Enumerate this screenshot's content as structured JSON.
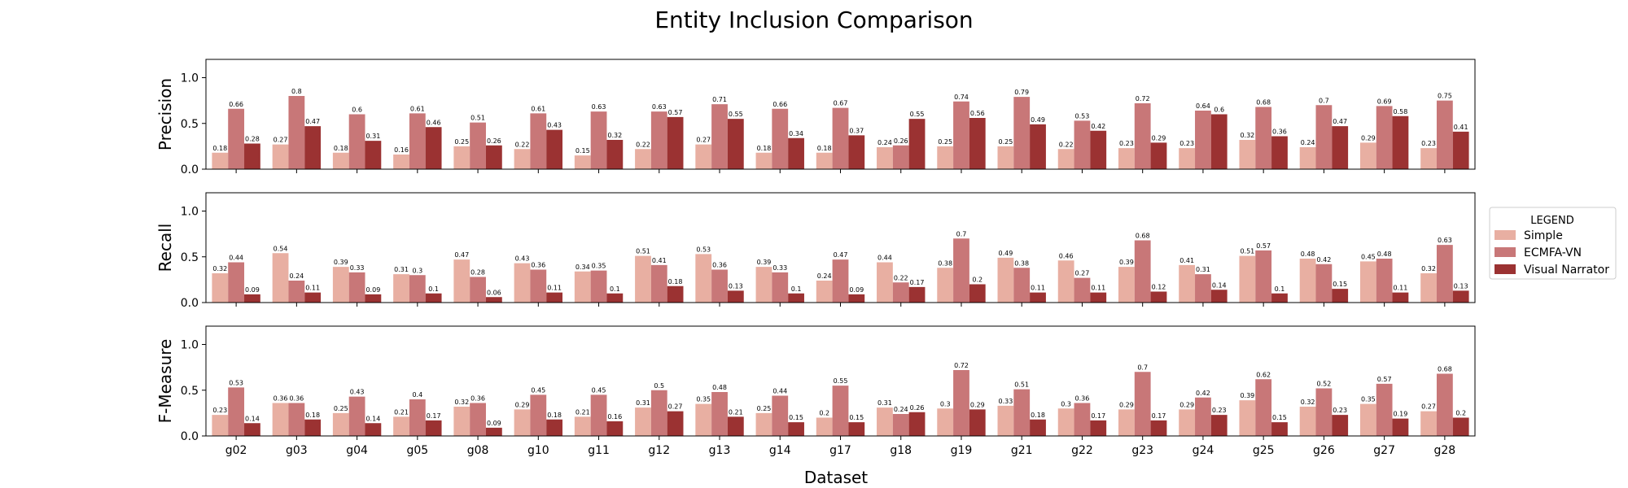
{
  "chart_data": {
    "type": "bar",
    "title": "Entity Inclusion Comparison",
    "xlabel": "Dataset",
    "categories": [
      "g02",
      "g03",
      "g04",
      "g05",
      "g08",
      "g10",
      "g11",
      "g12",
      "g13",
      "g14",
      "g17",
      "g18",
      "g19",
      "g21",
      "g22",
      "g23",
      "g24",
      "g25",
      "g26",
      "g27",
      "g28"
    ],
    "legend": {
      "title": "LEGEND",
      "placement": "right",
      "entries": [
        "Simple",
        "ECMFA-VN",
        "Visual Narrator"
      ]
    },
    "colors": {
      "Simple": "#e8afa2",
      "ECMFA-VN": "#c87778",
      "Visual Narrator": "#9b3232"
    },
    "ylim": [
      0,
      1.2
    ],
    "yticks": [
      "0.0",
      "0.5",
      "1.0"
    ],
    "grid": false,
    "panels": [
      {
        "ylabel": "Precision",
        "series": [
          {
            "name": "Simple",
            "values": [
              0.18,
              0.27,
              0.18,
              0.16,
              0.25,
              0.22,
              0.15,
              0.22,
              0.27,
              0.18,
              0.18,
              0.24,
              0.25,
              0.25,
              0.22,
              0.23,
              0.23,
              0.32,
              0.24,
              0.29,
              0.23
            ]
          },
          {
            "name": "ECMFA-VN",
            "values": [
              0.66,
              0.8,
              0.6,
              0.61,
              0.51,
              0.61,
              0.63,
              0.63,
              0.71,
              0.66,
              0.67,
              0.26,
              0.74,
              0.79,
              0.53,
              0.72,
              0.64,
              0.68,
              0.7,
              0.69,
              0.75
            ]
          },
          {
            "name": "Visual Narrator",
            "values": [
              0.28,
              0.47,
              0.31,
              0.46,
              0.26,
              0.43,
              0.32,
              0.57,
              0.55,
              0.34,
              0.37,
              0.55,
              0.56,
              0.49,
              0.42,
              0.29,
              0.6,
              0.36,
              0.47,
              0.58,
              0.41
            ]
          }
        ]
      },
      {
        "ylabel": "Recall",
        "series": [
          {
            "name": "Simple",
            "values": [
              0.32,
              0.54,
              0.39,
              0.31,
              0.47,
              0.43,
              0.34,
              0.51,
              0.53,
              0.39,
              0.24,
              0.44,
              0.38,
              0.49,
              0.46,
              0.39,
              0.41,
              0.51,
              0.48,
              0.45,
              0.32
            ]
          },
          {
            "name": "ECMFA-VN",
            "values": [
              0.44,
              0.24,
              0.33,
              0.3,
              0.28,
              0.36,
              0.35,
              0.41,
              0.36,
              0.33,
              0.47,
              0.22,
              0.7,
              0.38,
              0.27,
              0.68,
              0.31,
              0.57,
              0.42,
              0.48,
              0.63
            ]
          },
          {
            "name": "Visual Narrator",
            "values": [
              0.09,
              0.11,
              0.09,
              0.1,
              0.06,
              0.11,
              0.1,
              0.18,
              0.13,
              0.1,
              0.09,
              0.17,
              0.2,
              0.11,
              0.11,
              0.12,
              0.14,
              0.1,
              0.15,
              0.11,
              0.13
            ]
          }
        ]
      },
      {
        "ylabel": "F-Measure",
        "series": [
          {
            "name": "Simple",
            "values": [
              0.23,
              0.36,
              0.25,
              0.21,
              0.32,
              0.29,
              0.21,
              0.31,
              0.35,
              0.25,
              0.2,
              0.31,
              0.3,
              0.33,
              0.3,
              0.29,
              0.29,
              0.39,
              0.32,
              0.35,
              0.27
            ]
          },
          {
            "name": "ECMFA-VN",
            "values": [
              0.53,
              0.36,
              0.43,
              0.4,
              0.36,
              0.45,
              0.45,
              0.5,
              0.48,
              0.44,
              0.55,
              0.24,
              0.72,
              0.51,
              0.36,
              0.7,
              0.42,
              0.62,
              0.52,
              0.57,
              0.68
            ]
          },
          {
            "name": "Visual Narrator",
            "values": [
              0.14,
              0.18,
              0.14,
              0.17,
              0.09,
              0.18,
              0.16,
              0.27,
              0.21,
              0.15,
              0.15,
              0.26,
              0.29,
              0.18,
              0.17,
              0.17,
              0.23,
              0.15,
              0.23,
              0.19,
              0.2
            ]
          }
        ]
      }
    ]
  }
}
